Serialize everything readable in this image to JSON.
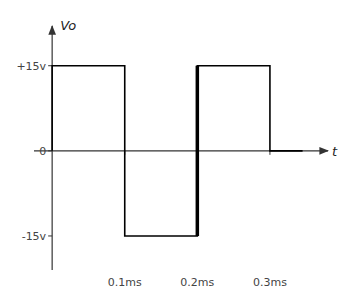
{
  "chart_data": {
    "type": "line",
    "title": "",
    "xlabel": "t",
    "ylabel": "Vo",
    "x": [
      0,
      0,
      0.1,
      0.1,
      0.2,
      0.2,
      0.3,
      0.3,
      0.345
    ],
    "series": [
      {
        "color": "#000000",
        "values": [
          0,
          15,
          15,
          -15,
          -15,
          15,
          15,
          0,
          0
        ]
      },
      {
        "color": "#000000",
        "x": [
          0.2,
          0.2
        ],
        "values": [
          -15,
          15
        ]
      }
    ],
    "xlim": [
      -0.025,
      0.38
    ],
    "ylim": [
      -21,
      22
    ],
    "xticks": [
      {
        "value": 0.1,
        "label": "0.1ms"
      },
      {
        "value": 0.2,
        "label": "0.2ms"
      },
      {
        "value": 0.3,
        "label": "0.3ms"
      }
    ],
    "yticks": [
      {
        "value": 15,
        "label": "+15v"
      },
      0,
      {
        "value": -15,
        "label": "-15v"
      }
    ],
    "grid": false
  }
}
